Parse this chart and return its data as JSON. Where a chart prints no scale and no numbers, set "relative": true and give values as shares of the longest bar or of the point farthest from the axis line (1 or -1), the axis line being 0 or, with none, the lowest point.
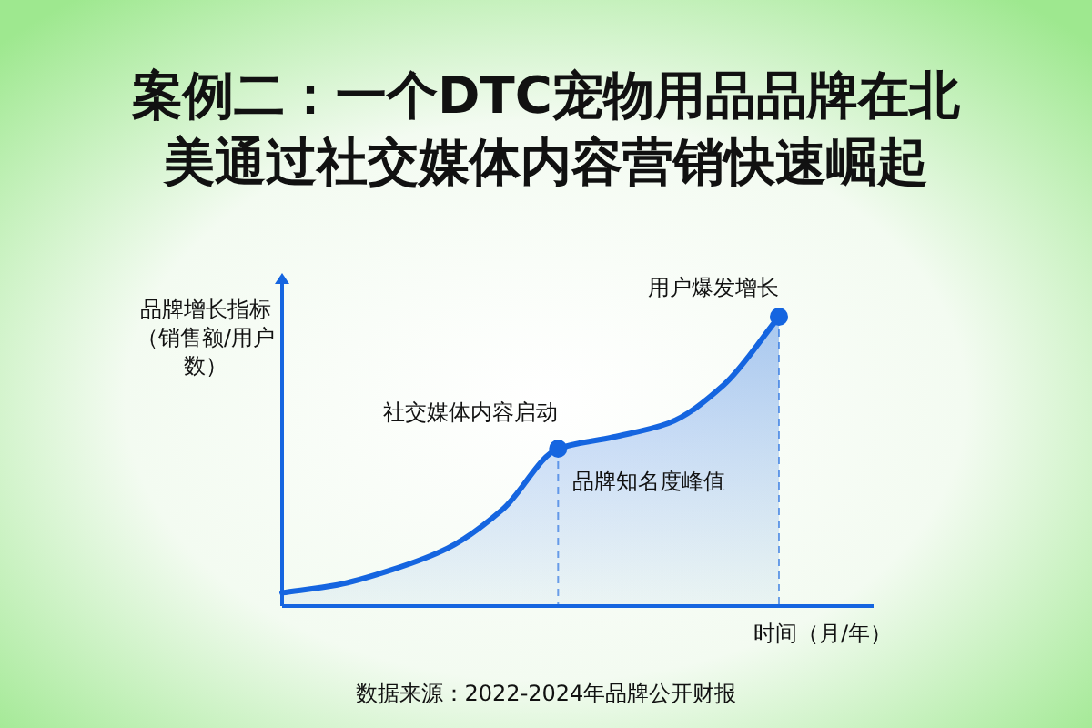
{
  "chart_data": {
    "type": "area",
    "title": "案例二：一个DTC宠物用品品牌在北美通过社交媒体内容营销快速崛起",
    "xlabel": "时间（月/年）",
    "ylabel": "品牌增长指标（销售额/用户数）",
    "relative": true,
    "categories": [
      null,
      null,
      null,
      null,
      null,
      null,
      null,
      null,
      null,
      null
    ],
    "series": [
      {
        "color": "#1565e0",
        "values": [
          0.046,
          0.073,
          0.126,
          0.2,
          0.335,
          0.544,
          0.584,
          0.632,
          0.764,
          1
        ]
      }
    ],
    "annotations": [
      "社交媒体内容启动",
      "品牌知名度峰值",
      "用户爆发增长",
      "数据来源：2022-2024年品牌公开财报"
    ]
  }
}
